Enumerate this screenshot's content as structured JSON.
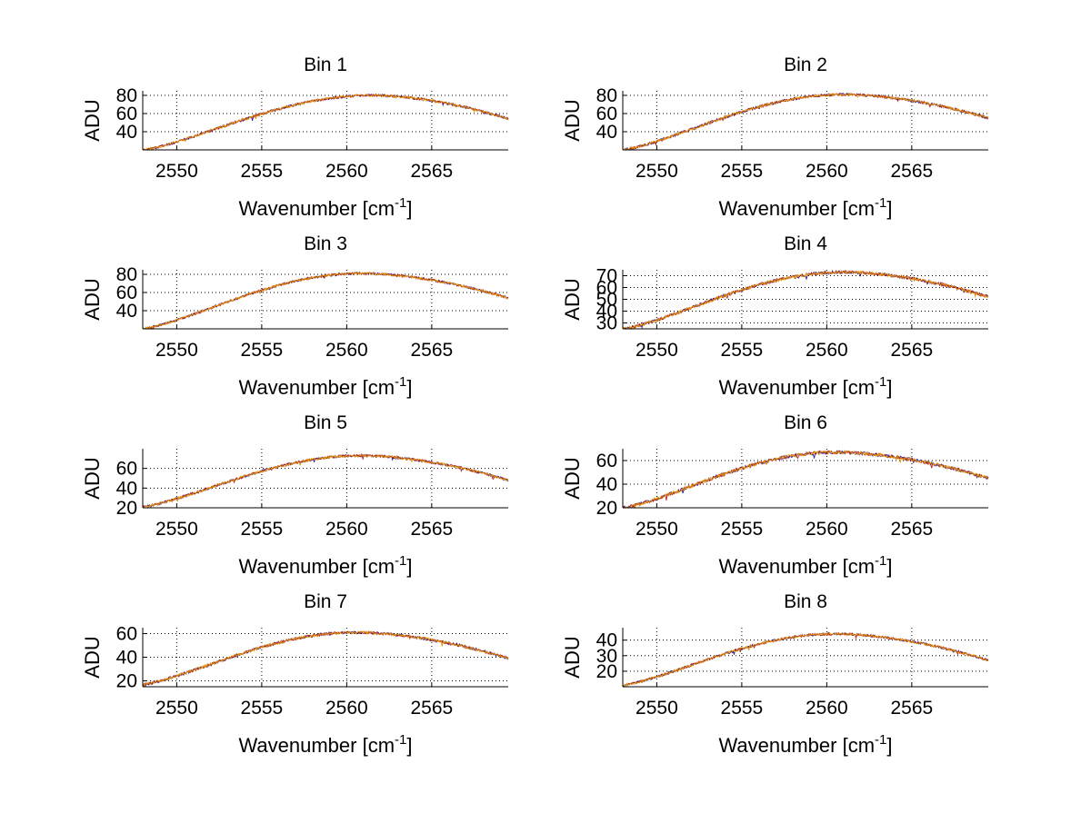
{
  "figure": {
    "background": "#ffffff",
    "line_colors": [
      "#2a1f8f",
      "#b22222",
      "#e69500"
    ]
  },
  "chart_data": [
    {
      "type": "line",
      "title": "Bin 1",
      "xlabel_main": "Wavenumber [cm",
      "xlabel_sup": "-1",
      "xlabel_tail": "]",
      "ylabel": "ADU",
      "xlim": [
        2548,
        2569.5
      ],
      "ylim": [
        20,
        85
      ],
      "xticks": [
        2550,
        2555,
        2560,
        2565
      ],
      "yticks": [
        40,
        60,
        80
      ],
      "grid": true,
      "shape": {
        "start": 20,
        "peak": 80,
        "end": 54,
        "peak_x": 2561.5,
        "noise": 1.4,
        "seed": 1
      }
    },
    {
      "type": "line",
      "title": "Bin 2",
      "xlabel_main": "Wavenumber [cm",
      "xlabel_sup": "-1",
      "xlabel_tail": "]",
      "ylabel": "ADU",
      "xlim": [
        2548,
        2569.5
      ],
      "ylim": [
        20,
        85
      ],
      "xticks": [
        2550,
        2555,
        2560,
        2565
      ],
      "yticks": [
        40,
        60,
        80
      ],
      "grid": true,
      "shape": {
        "start": 20,
        "peak": 81,
        "end": 55,
        "peak_x": 2561.0,
        "noise": 1.5,
        "seed": 2
      }
    },
    {
      "type": "line",
      "title": "Bin 3",
      "xlabel_main": "Wavenumber [cm",
      "xlabel_sup": "-1",
      "xlabel_tail": "]",
      "ylabel": "ADU",
      "xlim": [
        2548,
        2569.5
      ],
      "ylim": [
        20,
        85
      ],
      "xticks": [
        2550,
        2555,
        2560,
        2565
      ],
      "yticks": [
        40,
        60,
        80
      ],
      "grid": true,
      "shape": {
        "start": 20,
        "peak": 81,
        "end": 54,
        "peak_x": 2560.8,
        "noise": 1.3,
        "seed": 3
      }
    },
    {
      "type": "line",
      "title": "Bin 4",
      "xlabel_main": "Wavenumber [cm",
      "xlabel_sup": "-1",
      "xlabel_tail": "]",
      "ylabel": "ADU",
      "xlim": [
        2548,
        2569.5
      ],
      "ylim": [
        25,
        75
      ],
      "xticks": [
        2550,
        2555,
        2560,
        2565
      ],
      "yticks": [
        30,
        40,
        50,
        60,
        70
      ],
      "grid": true,
      "shape": {
        "start": 25,
        "peak": 73,
        "end": 52,
        "peak_x": 2561.0,
        "noise": 1.3,
        "seed": 4
      }
    },
    {
      "type": "line",
      "title": "Bin 5",
      "xlabel_main": "Wavenumber [cm",
      "xlabel_sup": "-1",
      "xlabel_tail": "]",
      "ylabel": "ADU",
      "xlim": [
        2548,
        2569.5
      ],
      "ylim": [
        20,
        80
      ],
      "xticks": [
        2550,
        2555,
        2560,
        2565
      ],
      "yticks": [
        20,
        40,
        60
      ],
      "grid": true,
      "shape": {
        "start": 21,
        "peak": 73,
        "end": 48,
        "peak_x": 2560.8,
        "noise": 1.3,
        "seed": 5
      }
    },
    {
      "type": "line",
      "title": "Bin 6",
      "xlabel_main": "Wavenumber [cm",
      "xlabel_sup": "-1",
      "xlabel_tail": "]",
      "ylabel": "ADU",
      "xlim": [
        2548,
        2569.5
      ],
      "ylim": [
        20,
        70
      ],
      "xticks": [
        2550,
        2555,
        2560,
        2565
      ],
      "yticks": [
        20,
        40,
        60
      ],
      "grid": true,
      "shape": {
        "start": 20,
        "peak": 67,
        "end": 45,
        "peak_x": 2560.5,
        "noise": 1.4,
        "seed": 6
      }
    },
    {
      "type": "line",
      "title": "Bin 7",
      "xlabel_main": "Wavenumber [cm",
      "xlabel_sup": "-1",
      "xlabel_tail": "]",
      "ylabel": "ADU",
      "xlim": [
        2548,
        2569.5
      ],
      "ylim": [
        15,
        65
      ],
      "xticks": [
        2550,
        2555,
        2560,
        2565
      ],
      "yticks": [
        20,
        40,
        60
      ],
      "grid": true,
      "shape": {
        "start": 17,
        "peak": 61,
        "end": 39,
        "peak_x": 2560.5,
        "noise": 1.2,
        "seed": 7
      }
    },
    {
      "type": "line",
      "title": "Bin 8",
      "xlabel_main": "Wavenumber [cm",
      "xlabel_sup": "-1",
      "xlabel_tail": "]",
      "ylabel": "ADU",
      "xlim": [
        2548,
        2569.5
      ],
      "ylim": [
        10,
        48
      ],
      "xticks": [
        2550,
        2555,
        2560,
        2565
      ],
      "yticks": [
        20,
        30,
        40
      ],
      "grid": true,
      "shape": {
        "start": 11,
        "peak": 44,
        "end": 27,
        "peak_x": 2560.5,
        "noise": 0.8,
        "seed": 8
      }
    }
  ]
}
